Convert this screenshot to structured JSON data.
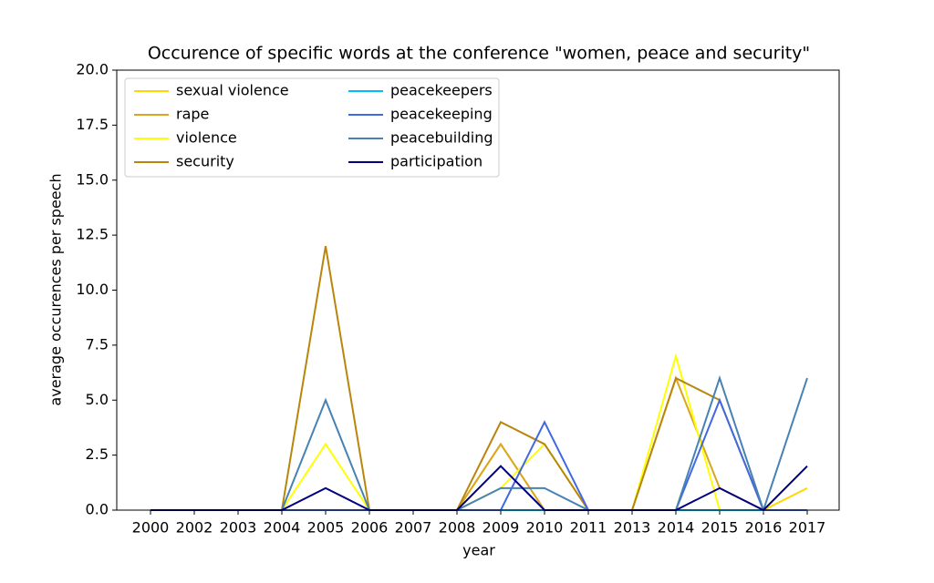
{
  "chart_data": {
    "type": "line",
    "title": "Occurence of specific words at the conference \"women, peace and security\"",
    "x_label": "year",
    "y_label": "average occurences per speech",
    "categories": [
      "2000",
      "2002",
      "2003",
      "2004",
      "2005",
      "2006",
      "2007",
      "2008",
      "2009",
      "2010",
      "2011",
      "2013",
      "2014",
      "2015",
      "2016",
      "2017"
    ],
    "ylim": [
      0,
      20
    ],
    "yticks": [
      {
        "value": 0,
        "label": "0.0"
      },
      {
        "value": 2.5,
        "label": "2.5"
      },
      {
        "value": 5,
        "label": "5.0"
      },
      {
        "value": 7.5,
        "label": "7.5"
      },
      {
        "value": 10,
        "label": "10.0"
      },
      {
        "value": 12.5,
        "label": "12.5"
      },
      {
        "value": 15,
        "label": "15.0"
      },
      {
        "value": 17.5,
        "label": "17.5"
      },
      {
        "value": 20,
        "label": "20.0"
      }
    ],
    "legend": "upper left",
    "series": [
      {
        "name": "sexual violence",
        "color": "#ffd700",
        "values": [
          0,
          0,
          0,
          0,
          0,
          0,
          0,
          0,
          3,
          0,
          0,
          0,
          0,
          0,
          0,
          1
        ]
      },
      {
        "name": "rape",
        "color": "#daa520",
        "values": [
          0,
          0,
          0,
          0,
          0,
          0,
          0,
          0,
          3,
          0,
          0,
          0,
          6,
          1,
          0,
          0
        ]
      },
      {
        "name": "violence",
        "color": "#ffff00",
        "values": [
          0,
          0,
          0,
          0,
          3,
          0,
          0,
          0,
          1,
          3,
          0,
          0,
          7,
          0,
          0,
          0
        ]
      },
      {
        "name": "security",
        "color": "#b8860b",
        "values": [
          0,
          0,
          0,
          0,
          12,
          0,
          0,
          0,
          4,
          3,
          0,
          0,
          6,
          5,
          0,
          0
        ]
      },
      {
        "name": "peacekeepers",
        "color": "#00bfff",
        "values": [
          0,
          0,
          0,
          0,
          0,
          0,
          0,
          0,
          0,
          0,
          0,
          0,
          0,
          0,
          0,
          0
        ]
      },
      {
        "name": "peacekeeping",
        "color": "#4169e1",
        "values": [
          0,
          0,
          0,
          0,
          0,
          0,
          0,
          0,
          0,
          4,
          0,
          0,
          0,
          5,
          0,
          0
        ]
      },
      {
        "name": "peacebuilding",
        "color": "#4682b4",
        "values": [
          0,
          0,
          0,
          0,
          5,
          0,
          0,
          0,
          1,
          1,
          0,
          0,
          0,
          6,
          0,
          6
        ]
      },
      {
        "name": "participation",
        "color": "#000080",
        "values": [
          0,
          0,
          0,
          0,
          1,
          0,
          0,
          0,
          2,
          0,
          0,
          0,
          0,
          1,
          0,
          2
        ]
      }
    ]
  }
}
